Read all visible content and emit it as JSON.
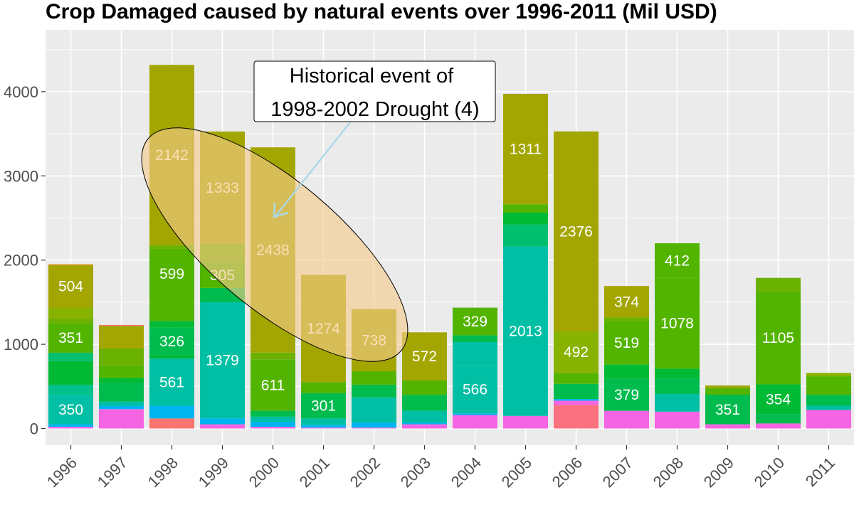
{
  "chart_data": {
    "type": "bar",
    "stacked": true,
    "title": "Crop Damaged caused by natural events over 1996-2011 (Mil USD)",
    "xlabel": "",
    "ylabel": "",
    "ylim": [
      -200,
      4600
    ],
    "yticks": [
      0,
      1000,
      2000,
      3000,
      4000
    ],
    "categories": [
      "1996",
      "1997",
      "1998",
      "1999",
      "2000",
      "2001",
      "2002",
      "2003",
      "2004",
      "2005",
      "2006",
      "2007",
      "2008",
      "2009",
      "2010",
      "2011"
    ],
    "grid": true,
    "legend": "none",
    "background_color": "#ebebeb",
    "grid_color": "#ffffff",
    "label_color": "#ffffff",
    "stacks": [
      [
        {
          "value": 20,
          "color": "#f564e3"
        },
        {
          "value": 30,
          "color": "#00b4f0"
        },
        {
          "value": 350,
          "color": "#00bfa4",
          "label": "350"
        },
        {
          "value": 120,
          "color": "#00c08b"
        },
        {
          "value": 280,
          "color": "#00b935"
        },
        {
          "value": 100,
          "color": "#00bf6f"
        },
        {
          "value": 351,
          "color": "#53b400",
          "label": "351"
        },
        {
          "value": 50,
          "color": "#6bb100"
        },
        {
          "value": 135,
          "color": "#88b200"
        },
        {
          "value": 504,
          "color": "#a3a500",
          "label": "504"
        },
        {
          "value": 10,
          "color": "#e58700"
        }
      ],
      [
        {
          "value": 230,
          "color": "#f564e3"
        },
        {
          "value": 40,
          "color": "#00b4f0"
        },
        {
          "value": 50,
          "color": "#00bfa4"
        },
        {
          "value": 220,
          "color": "#00bb4e"
        },
        {
          "value": 60,
          "color": "#00b935"
        },
        {
          "value": 150,
          "color": "#53b400"
        },
        {
          "value": 200,
          "color": "#6bb100"
        },
        {
          "value": 270,
          "color": "#a3a500"
        },
        {
          "value": 10,
          "color": "#f8766d"
        }
      ],
      [
        {
          "value": 120,
          "color": "#f8766d"
        },
        {
          "value": 150,
          "color": "#00b4f0"
        },
        {
          "value": 561,
          "color": "#00bfa4",
          "label": "561"
        },
        {
          "value": 40,
          "color": "#00b935"
        },
        {
          "value": 326,
          "color": "#00bb4e",
          "label": "326"
        },
        {
          "value": 80,
          "color": "#00b935"
        },
        {
          "value": 260,
          "color": "#53b400"
        },
        {
          "value": 599,
          "color": "#53b400",
          "label": "599"
        },
        {
          "value": 40,
          "color": "#6bb100"
        },
        {
          "value": 2142,
          "color": "#a3a500",
          "label": "2142"
        }
      ],
      [
        {
          "value": 50,
          "color": "#f564e3"
        },
        {
          "value": 70,
          "color": "#00b4f0"
        },
        {
          "value": 1379,
          "color": "#00bfa4",
          "label": "1379"
        },
        {
          "value": 170,
          "color": "#00bb4e"
        },
        {
          "value": 305,
          "color": "#53b400",
          "label": "305"
        },
        {
          "value": 220,
          "color": "#6bb100"
        },
        {
          "value": 1333,
          "color": "#a3a500",
          "label": "1333"
        }
      ],
      [
        {
          "value": 20,
          "color": "#f564e3"
        },
        {
          "value": 60,
          "color": "#00b4f0"
        },
        {
          "value": 60,
          "color": "#00bfa4"
        },
        {
          "value": 70,
          "color": "#00bb4e"
        },
        {
          "value": 611,
          "color": "#53b400",
          "label": "611"
        },
        {
          "value": 80,
          "color": "#6bb100"
        },
        {
          "value": 2438,
          "color": "#a3a500",
          "label": "2438"
        }
      ],
      [
        {
          "value": 10,
          "color": "#f564e3"
        },
        {
          "value": 30,
          "color": "#00b4f0"
        },
        {
          "value": 80,
          "color": "#00bfa4"
        },
        {
          "value": 301,
          "color": "#00bb4e",
          "label": "301"
        },
        {
          "value": 130,
          "color": "#53b400"
        },
        {
          "value": 1274,
          "color": "#a3a500",
          "label": "1274"
        }
      ],
      [
        {
          "value": 10,
          "color": "#f564e3"
        },
        {
          "value": 60,
          "color": "#00b4f0"
        },
        {
          "value": 300,
          "color": "#00bfa4"
        },
        {
          "value": 150,
          "color": "#00bb4e"
        },
        {
          "value": 160,
          "color": "#53b400"
        },
        {
          "value": 738,
          "color": "#a3a500",
          "label": "738"
        }
      ],
      [
        {
          "value": 50,
          "color": "#f564e3"
        },
        {
          "value": 20,
          "color": "#00b4f0"
        },
        {
          "value": 140,
          "color": "#00bfa4"
        },
        {
          "value": 190,
          "color": "#00bb4e"
        },
        {
          "value": 170,
          "color": "#53b400"
        },
        {
          "value": 572,
          "color": "#a3a500",
          "label": "572"
        }
      ],
      [
        {
          "value": 160,
          "color": "#f564e3"
        },
        {
          "value": 20,
          "color": "#00b4f0"
        },
        {
          "value": 566,
          "color": "#00bfa4",
          "label": "566"
        },
        {
          "value": 280,
          "color": "#00bfa4"
        },
        {
          "value": 80,
          "color": "#00bb4e"
        },
        {
          "value": 329,
          "color": "#53b400",
          "label": "329"
        }
      ],
      [
        {
          "value": 150,
          "color": "#f564e3"
        },
        {
          "value": 2013,
          "color": "#00bfa4",
          "label": "2013"
        },
        {
          "value": 260,
          "color": "#00bf6f"
        },
        {
          "value": 140,
          "color": "#00b935"
        },
        {
          "value": 100,
          "color": "#53b400"
        },
        {
          "value": 1311,
          "color": "#a3a500",
          "label": "1311"
        }
      ],
      [
        {
          "value": 280,
          "color": "#fc717f"
        },
        {
          "value": 50,
          "color": "#f564e3"
        },
        {
          "value": 20,
          "color": "#00b4f0"
        },
        {
          "value": 180,
          "color": "#00bb4e"
        },
        {
          "value": 130,
          "color": "#53b400"
        },
        {
          "value": 492,
          "color": "#88b200",
          "label": "492"
        },
        {
          "value": 2376,
          "color": "#a3a500",
          "label": "2376"
        }
      ],
      [
        {
          "value": 210,
          "color": "#f564e3"
        },
        {
          "value": 379,
          "color": "#00bb4e",
          "label": "379"
        },
        {
          "value": 170,
          "color": "#00b935"
        },
        {
          "value": 519,
          "color": "#53b400",
          "label": "519"
        },
        {
          "value": 40,
          "color": "#6bb100"
        },
        {
          "value": 374,
          "color": "#a3a500",
          "label": "374"
        }
      ],
      [
        {
          "value": 200,
          "color": "#f564e3"
        },
        {
          "value": 210,
          "color": "#00bfa4"
        },
        {
          "value": 180,
          "color": "#00bb4e"
        },
        {
          "value": 120,
          "color": "#00b935"
        },
        {
          "value": 1078,
          "color": "#53b400",
          "label": "1078"
        },
        {
          "value": 412,
          "color": "#53b400",
          "label": "412"
        }
      ],
      [
        {
          "value": 50,
          "color": "#f564e3"
        },
        {
          "value": 351,
          "color": "#00bb4e",
          "label": "351"
        },
        {
          "value": 80,
          "color": "#53b400"
        },
        {
          "value": 30,
          "color": "#a3a500"
        }
      ],
      [
        {
          "value": 60,
          "color": "#f564e3"
        },
        {
          "value": 110,
          "color": "#00bb4e"
        },
        {
          "value": 354,
          "color": "#00b935",
          "label": "354"
        },
        {
          "value": 1105,
          "color": "#53b400",
          "label": "1105"
        },
        {
          "value": 160,
          "color": "#6bb100"
        }
      ],
      [
        {
          "value": 220,
          "color": "#f564e3"
        },
        {
          "value": 50,
          "color": "#00bfa4"
        },
        {
          "value": 130,
          "color": "#00bb4e"
        },
        {
          "value": 220,
          "color": "#53b400"
        },
        {
          "value": 40,
          "color": "#88b200"
        }
      ]
    ],
    "annotation": {
      "lines": [
        "Historical event of",
        "1998-2002 Drought (4)"
      ],
      "highlight_fill": "#f5cb8c",
      "arrow_color": "#add8e6"
    }
  }
}
